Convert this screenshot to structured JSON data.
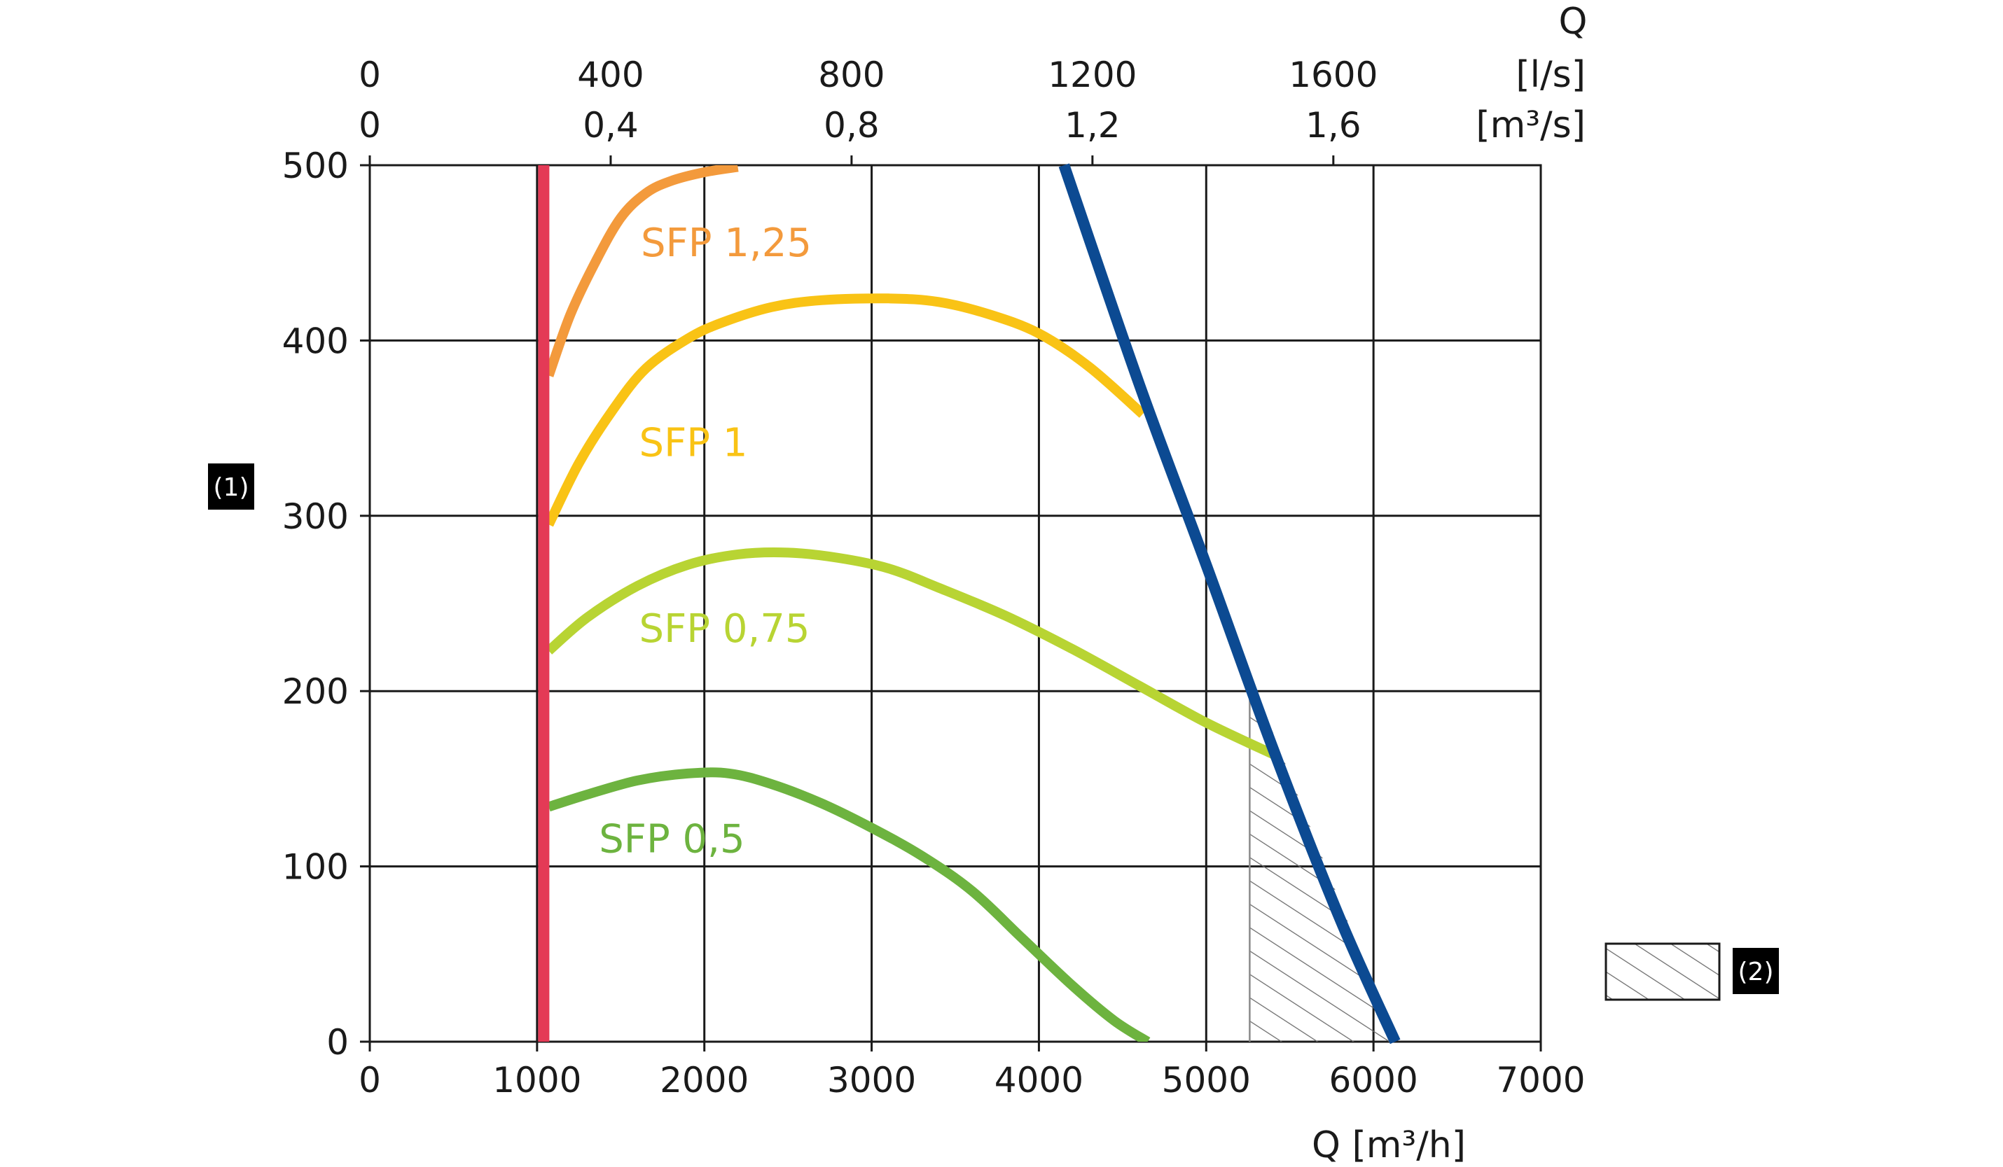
{
  "chart_data": {
    "type": "line",
    "title": "",
    "xlabel": "Q [m³/h]",
    "ylabel_badge": "(1)",
    "top_axis": {
      "title": "Q",
      "row1_unit": "[l/s]",
      "row2_unit": "[m³/s]",
      "row1_ticks": [
        {
          "label": "0",
          "m3h": 0
        },
        {
          "label": "400",
          "m3h": 1440
        },
        {
          "label": "800",
          "m3h": 2880
        },
        {
          "label": "1200",
          "m3h": 4320
        },
        {
          "label": "1600",
          "m3h": 5760
        }
      ],
      "row2_ticks": [
        {
          "label": "0",
          "m3h": 0
        },
        {
          "label": "0,4",
          "m3h": 1440
        },
        {
          "label": "0,8",
          "m3h": 2880
        },
        {
          "label": "1,2",
          "m3h": 4320
        },
        {
          "label": "1,6",
          "m3h": 5760
        }
      ]
    },
    "xlim": [
      0,
      7000
    ],
    "ylim": [
      0,
      500
    ],
    "xticks": [
      0,
      1000,
      2000,
      3000,
      4000,
      5000,
      6000,
      7000
    ],
    "yticks": [
      0,
      100,
      200,
      300,
      400,
      500
    ],
    "grid": true,
    "series": [
      {
        "name": "SFP 1,25",
        "color": "#f39a3c",
        "label": "SFP 1,25",
        "label_at": [
          1620,
          448
        ],
        "points": [
          [
            1070,
            380
          ],
          [
            1200,
            415
          ],
          [
            1350,
            445
          ],
          [
            1500,
            470
          ],
          [
            1650,
            484
          ],
          [
            1800,
            491
          ],
          [
            2000,
            496
          ],
          [
            2200,
            499
          ]
        ]
      },
      {
        "name": "SFP 1",
        "color": "#f9c315",
        "label": "SFP 1",
        "label_at": [
          1610,
          334
        ],
        "points": [
          [
            1070,
            295
          ],
          [
            1250,
            330
          ],
          [
            1450,
            360
          ],
          [
            1650,
            384
          ],
          [
            1900,
            401
          ],
          [
            2100,
            410
          ],
          [
            2400,
            419
          ],
          [
            2700,
            423
          ],
          [
            3100,
            424
          ],
          [
            3400,
            422
          ],
          [
            3700,
            415
          ],
          [
            4000,
            404
          ],
          [
            4300,
            385
          ],
          [
            4620,
            358
          ]
        ]
      },
      {
        "name": "SFP 0,75",
        "color": "#b8d433",
        "label": "SFP 0,75",
        "label_at": [
          1610,
          228
        ],
        "points": [
          [
            1070,
            223
          ],
          [
            1300,
            242
          ],
          [
            1600,
            260
          ],
          [
            1900,
            272
          ],
          [
            2200,
            278
          ],
          [
            2500,
            279
          ],
          [
            2800,
            276
          ],
          [
            3100,
            270
          ],
          [
            3400,
            259
          ],
          [
            3800,
            243
          ],
          [
            4200,
            224
          ],
          [
            4600,
            203
          ],
          [
            5000,
            182
          ],
          [
            5400,
            164
          ]
        ]
      },
      {
        "name": "SFP 0,5",
        "color": "#6db33f",
        "label": "SFP 0,5",
        "label_at": [
          1370,
          108
        ],
        "points": [
          [
            1070,
            134
          ],
          [
            1300,
            141
          ],
          [
            1600,
            149
          ],
          [
            1900,
            153
          ],
          [
            2150,
            153
          ],
          [
            2400,
            147
          ],
          [
            2700,
            136
          ],
          [
            3000,
            122
          ],
          [
            3300,
            106
          ],
          [
            3600,
            86
          ],
          [
            3900,
            59
          ],
          [
            4200,
            32
          ],
          [
            4450,
            12
          ],
          [
            4650,
            0
          ]
        ]
      }
    ],
    "limit_lines": [
      {
        "name": "min-flow-limit",
        "color": "#e43a56",
        "points": [
          [
            1040,
            0
          ],
          [
            1040,
            500
          ]
        ]
      },
      {
        "name": "max-flow-limit",
        "color": "#0c4a92",
        "points": [
          [
            4150,
            500
          ],
          [
            4600,
            375
          ],
          [
            5000,
            272
          ],
          [
            5400,
            167
          ],
          [
            5800,
            70
          ],
          [
            6130,
            0
          ]
        ]
      }
    ],
    "hatched_region": {
      "points": [
        [
          5260,
          210
        ],
        [
          5260,
          0
        ],
        [
          6130,
          0
        ]
      ]
    },
    "legend": {
      "placement": "bottom-right",
      "items": [
        {
          "symbol": "hatched-box",
          "badge": "(2)"
        }
      ]
    }
  }
}
